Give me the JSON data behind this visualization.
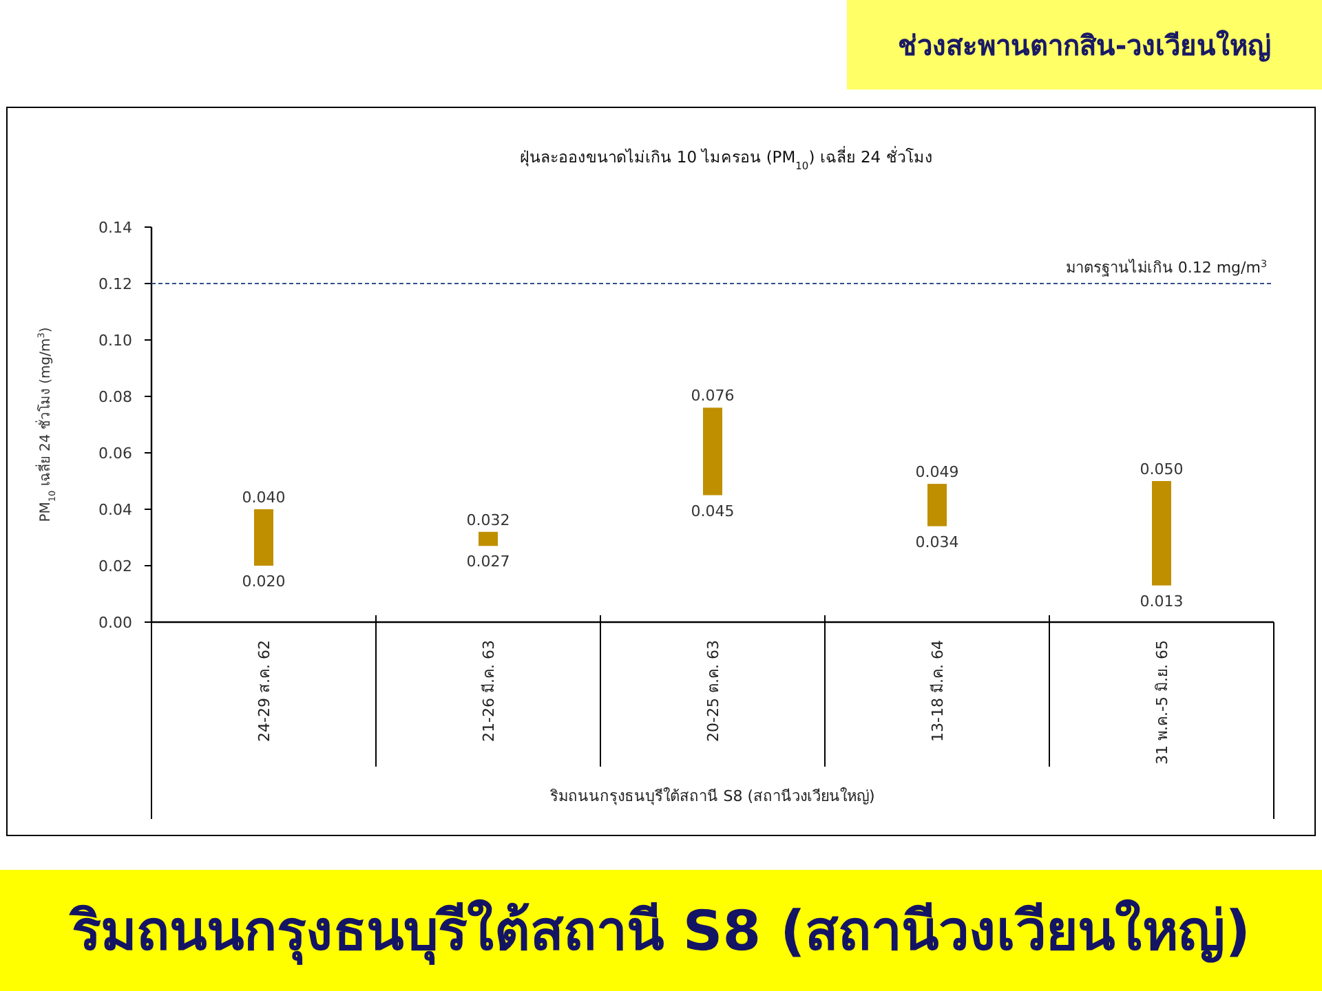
{
  "chart_data": {
    "type": "bar",
    "title": "ฝุ่นละอองขนาดไม่เกิน 10 ไมครอน (PM$_{10}$) เฉลี่ย 24 ชั่วโมง",
    "subtitle": "ช่วงสะพานตากสิน-วงเวียนใหญ่",
    "xlabel": "ริมถนนกรุงธนบุรีใต้สถานี S8 (สถานีวงเวียนใหญ่)",
    "ylabel": "PM$_{10}$ เฉลี่ย 24 ชั่วโมง (mg/m$^{3}$)",
    "categories": [
      "24-29 ส.ค. 62",
      "21-26 มี.ค. 63",
      "20-25 ต.ค. 63",
      "13-18 มี.ค. 64",
      "31 พ.ค.-5 มิ.ย. 65"
    ],
    "base": [
      0.02,
      0.027,
      0.045,
      0.034,
      0.013
    ],
    "values": [
      0.02,
      0.005,
      0.031,
      0.015,
      0.037
    ],
    "color": "#bf8f00",
    "ylim": [
      0,
      0.14
    ],
    "yticks": [
      {
        "value": 0,
        "label": "0.00"
      },
      {
        "value": 0.02,
        "label": "0.02"
      },
      {
        "value": 0.04,
        "label": "0.04"
      },
      {
        "value": 0.06,
        "label": "0.06"
      },
      {
        "value": 0.08,
        "label": "0.08"
      },
      {
        "value": 0.1,
        "label": "0.10"
      },
      {
        "value": 0.12,
        "label": "0.12"
      },
      {
        "value": 0.14,
        "label": "0.14"
      }
    ],
    "ref_lines": [
      {
        "axis": "y",
        "value": 0.12,
        "label": "มาตรฐานไม่เกิน 0.12 mg/m$^{3}$",
        "color": "#2f4f8f",
        "line_style": "dashed"
      }
    ],
    "annotations": [
      {
        "text": "0.040",
        "x": "24-29 ส.ค. 62",
        "y": 0.04
      },
      {
        "text": "0.020",
        "x": "24-29 ส.ค. 62",
        "y": 0.02
      },
      {
        "text": "0.032",
        "x": "21-26 มี.ค. 63",
        "y": 0.032
      },
      {
        "text": "0.027",
        "x": "21-26 มี.ค. 63",
        "y": 0.027
      },
      {
        "text": "0.076",
        "x": "20-25 ต.ค. 63",
        "y": 0.076
      },
      {
        "text": "0.045",
        "x": "20-25 ต.ค. 63",
        "y": 0.045
      },
      {
        "text": "0.049",
        "x": "13-18 มี.ค. 64",
        "y": 0.049
      },
      {
        "text": "0.034",
        "x": "13-18 มี.ค. 64",
        "y": 0.034
      },
      {
        "text": "0.050",
        "x": "31 พ.ค.-5 มิ.ย. 65",
        "y": 0.05
      },
      {
        "text": "0.013",
        "x": "31 พ.ค.-5 มิ.ย. 65",
        "y": 0.013
      },
      "ริมถนนกรุงธนบุรีใต้สถานี S8 (สถานีวงเวียนใหญ่)"
    ]
  }
}
